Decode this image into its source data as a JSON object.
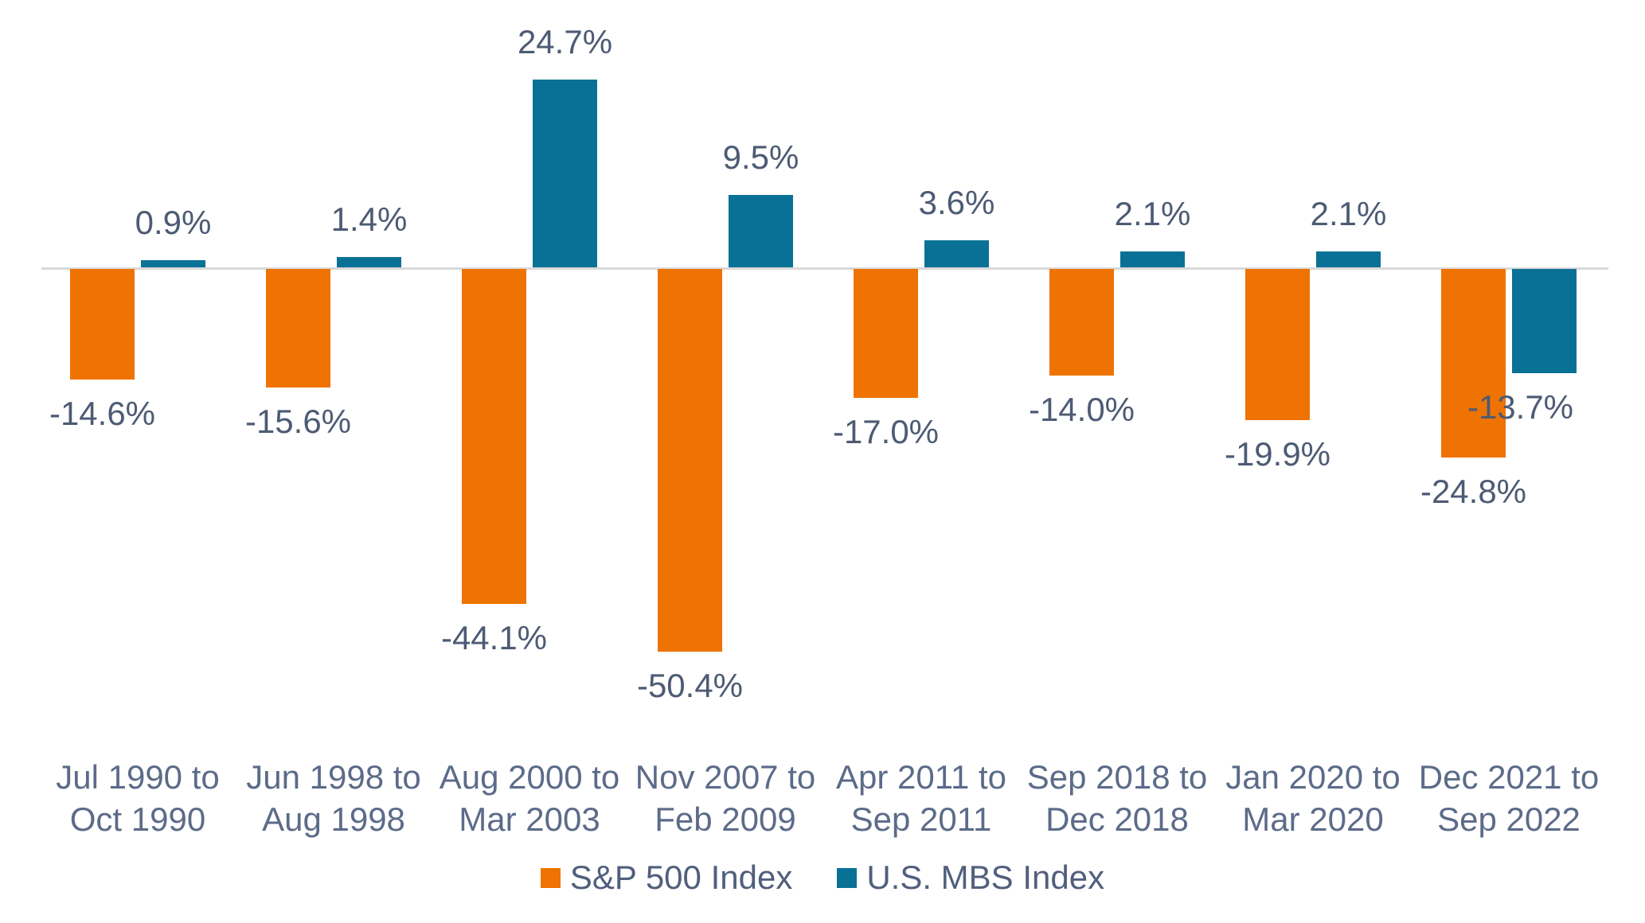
{
  "chart_data": {
    "type": "bar",
    "title": "",
    "xlabel": "",
    "ylabel": "",
    "ylim": [
      -55,
      30
    ],
    "grid": false,
    "legend_position": "bottom-center",
    "value_labels_shown": true,
    "zero_line_color": "#d9d9d9",
    "categories": [
      [
        "Jul 1990 to",
        "Oct 1990"
      ],
      [
        "Jun 1998 to",
        "Aug 1998"
      ],
      [
        "Aug 2000 to",
        "Mar 2003"
      ],
      [
        "Nov 2007 to",
        "Feb 2009"
      ],
      [
        "Apr 2011 to",
        "Sep 2011"
      ],
      [
        "Sep 2018 to",
        "Dec 2018"
      ],
      [
        "Jan 2020 to",
        "Mar 2020"
      ],
      [
        "Dec 2021 to",
        "Sep 2022"
      ]
    ],
    "series": [
      {
        "name": "S&P 500 Index",
        "color": "#ee7302",
        "values": [
          -14.6,
          -15.6,
          -44.1,
          -50.4,
          -17.0,
          -14.0,
          -19.9,
          -24.8
        ],
        "labels": [
          "-14.6%",
          "-15.6%",
          "-44.1%",
          "-50.4%",
          "-17.0%",
          "-14.0%",
          "-19.9%",
          "-24.8%"
        ]
      },
      {
        "name": "U.S. MBS Index",
        "color": "#0a7196",
        "values": [
          0.9,
          1.4,
          24.7,
          9.5,
          3.6,
          2.1,
          2.1,
          -13.7
        ],
        "labels": [
          "0.9%",
          "1.4%",
          "24.7%",
          "9.5%",
          "3.6%",
          "2.1%",
          "2.1%",
          "-13.7%"
        ]
      }
    ]
  },
  "colors": {
    "background": "#ffffff",
    "value_label_text": "#4d5b74",
    "category_label_text": "#5c6b89",
    "legend_text": "#515f7c"
  }
}
